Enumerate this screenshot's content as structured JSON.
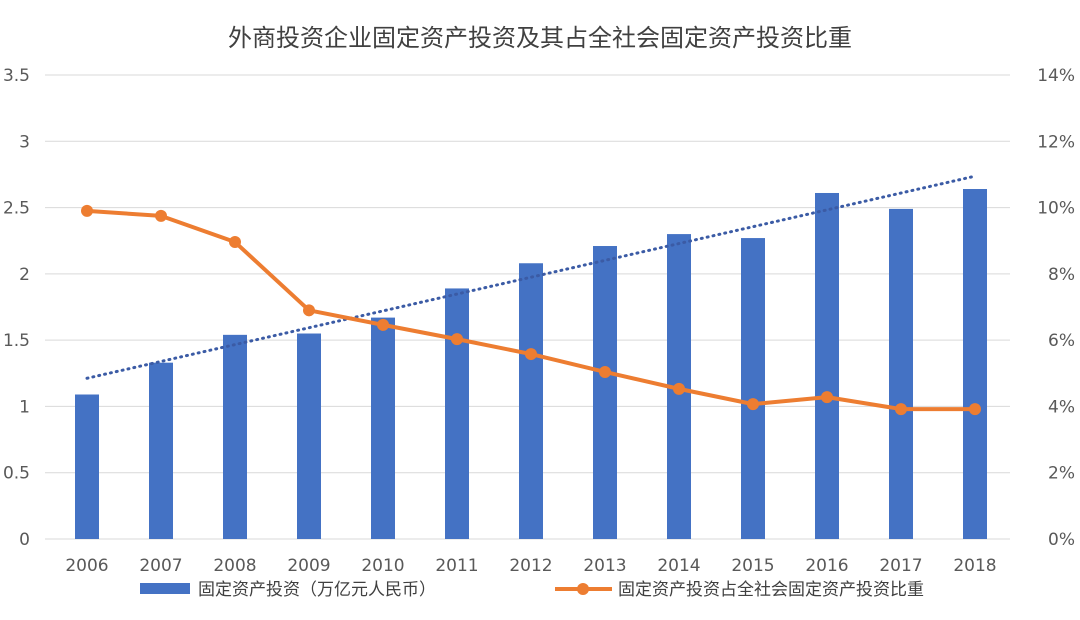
{
  "chart_data": {
    "type": "bar+line",
    "title": "外商投资企业固定资产投资及其占全社会固定资产投资比重",
    "categories": [
      "2006",
      "2007",
      "2008",
      "2009",
      "2010",
      "2011",
      "2012",
      "2013",
      "2014",
      "2015",
      "2016",
      "2017",
      "2018"
    ],
    "series": [
      {
        "name": "固定资产投资（万亿元人民币）",
        "type": "bar",
        "axis": "left",
        "color": "#4472c4",
        "values": [
          1.09,
          1.33,
          1.54,
          1.55,
          1.67,
          1.89,
          2.08,
          2.21,
          2.3,
          2.27,
          2.61,
          2.49,
          2.64
        ]
      },
      {
        "name": "固定资产投资占全社会固定资产投资比重",
        "type": "line",
        "axis": "right",
        "color": "#ed7d31",
        "values": [
          9.9,
          9.75,
          8.96,
          6.9,
          6.46,
          6.03,
          5.58,
          5.04,
          4.53,
          4.07,
          4.28,
          3.92,
          3.92
        ]
      }
    ],
    "trendline": {
      "of": "固定资产投资（万亿元人民币）",
      "kind": "linear",
      "style": "dotted",
      "color": "#3b5ba5"
    },
    "y_left": {
      "range": [
        0,
        3.5
      ],
      "ticks": [
        "0",
        "0.5",
        "1",
        "1.5",
        "2",
        "2.5",
        "3",
        "3.5"
      ]
    },
    "y_right": {
      "range": [
        0,
        14
      ],
      "ticks": [
        "0%",
        "2%",
        "4%",
        "6%",
        "8%",
        "10%",
        "12%",
        "14%"
      ]
    },
    "grid": true,
    "legend": "bottom"
  }
}
